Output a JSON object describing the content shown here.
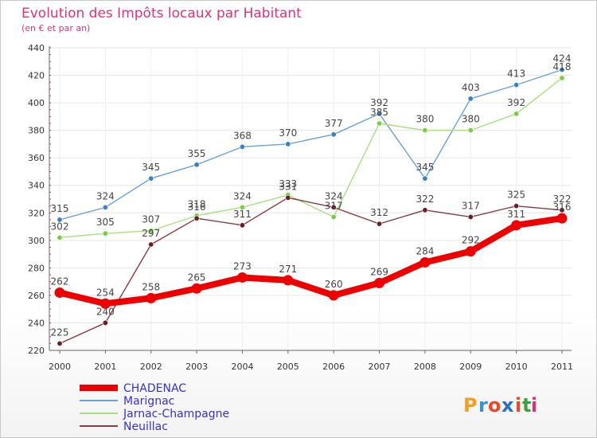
{
  "chart_data": {
    "type": "line",
    "title": "Evolution des Impôts locaux par Habitant",
    "subtitle": "(en € et par an)",
    "xlabel": "",
    "ylabel": "",
    "categories": [
      "2000",
      "2001",
      "2002",
      "2003",
      "2004",
      "2005",
      "2006",
      "2007",
      "2008",
      "2009",
      "2010",
      "2011"
    ],
    "ylim": [
      220,
      440
    ],
    "yticks": [
      220,
      240,
      260,
      280,
      300,
      320,
      340,
      360,
      380,
      400,
      420,
      440
    ],
    "grid": true,
    "legend_position": "bottom-left",
    "series": [
      {
        "name": "Marignac",
        "color": "#6aa0d8",
        "marker": "#3a7fc8",
        "values": [
          315,
          324,
          345,
          355,
          368,
          370,
          377,
          392,
          345,
          403,
          413,
          424
        ]
      },
      {
        "name": "Jarnac-Champagne",
        "color": "#a6e07a",
        "marker": "#7acc44",
        "values": [
          302,
          305,
          307,
          318,
          324,
          333,
          317,
          385,
          380,
          380,
          392,
          418
        ]
      },
      {
        "name": "Neuillac",
        "color": "#8a3a44",
        "marker": "#6a1e22",
        "values": [
          225,
          240,
          297,
          316,
          311,
          331,
          324,
          312,
          322,
          317,
          325,
          322
        ]
      },
      {
        "name": "CHADENAC",
        "color": "#ee0000",
        "marker": "#ee0000",
        "values": [
          262,
          254,
          258,
          265,
          273,
          271,
          260,
          269,
          284,
          292,
          311,
          316
        ]
      }
    ],
    "legend_order": [
      "CHADENAC",
      "Marignac",
      "Jarnac-Champagne",
      "Neuillac"
    ]
  },
  "logo": {
    "text": "Proxiti",
    "letters": [
      "P",
      "r",
      "o",
      "x",
      "i",
      "t",
      "i"
    ],
    "colors": [
      "#f0a020",
      "#3a8fd8",
      "#e84a2a",
      "#2a6fc8",
      "#e84a2a",
      "#3aa040",
      "#e03070"
    ]
  }
}
